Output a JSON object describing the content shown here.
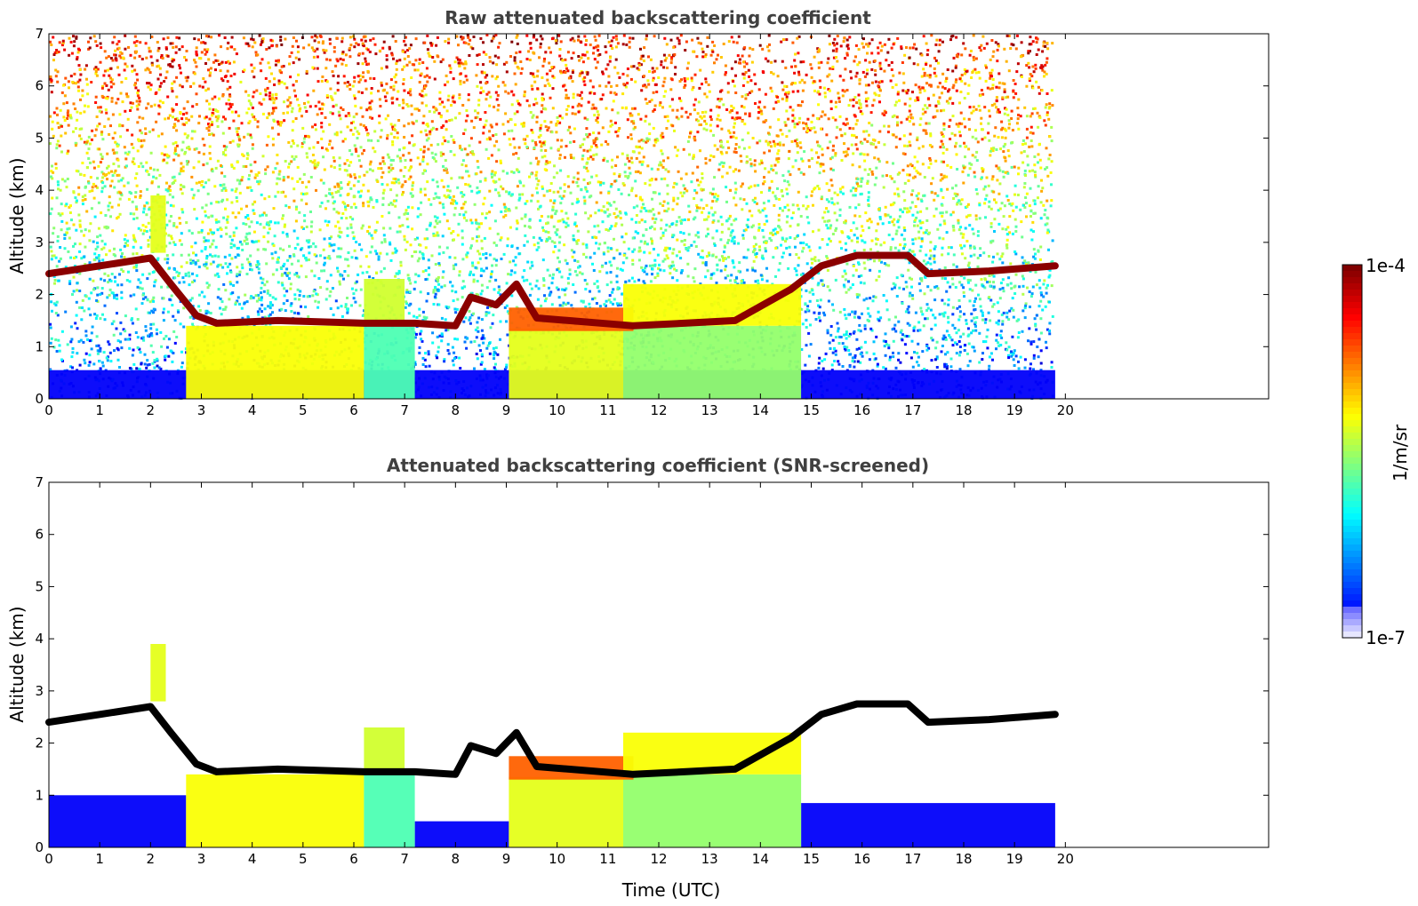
{
  "chart_data": [
    {
      "type": "heatmap",
      "title": "Raw attenuated backscattering coefficient",
      "xlabel": "",
      "ylabel": "Altitude (km)",
      "xlim": [
        0,
        24
      ],
      "ylim": [
        0,
        7
      ],
      "xticks": [
        "0",
        "1",
        "2",
        "3",
        "4",
        "5",
        "6",
        "7",
        "8",
        "9",
        "10",
        "11",
        "12",
        "13",
        "14",
        "15",
        "16",
        "17",
        "18",
        "19",
        "20"
      ],
      "yticks": [
        "0",
        "1",
        "2",
        "3",
        "4",
        "5",
        "6",
        "7"
      ],
      "data_end_time": 19.8,
      "noise_floor": true,
      "regions": [
        {
          "kind": "surface_layer",
          "x0": 0,
          "x1": 19.8,
          "y0": 0,
          "y1": 0.55,
          "level": 0.12
        },
        {
          "kind": "boundary_layer",
          "x0": 2.7,
          "x1": 6.2,
          "y0": 0,
          "y1": 1.4,
          "level": 0.62
        },
        {
          "kind": "boundary_layer",
          "x0": 6.2,
          "x1": 7.2,
          "y0": 0,
          "y1": 1.4,
          "level": 0.45
        },
        {
          "kind": "boundary_layer",
          "x0": 9.05,
          "x1": 11.3,
          "y0": 0,
          "y1": 1.35,
          "level": 0.6
        },
        {
          "kind": "boundary_layer",
          "x0": 11.3,
          "x1": 14.8,
          "y0": 0,
          "y1": 1.4,
          "level": 0.52
        },
        {
          "kind": "aerosol_layer",
          "x0": 9.05,
          "x1": 11.5,
          "y0": 1.3,
          "y1": 1.75,
          "level": 0.78
        },
        {
          "kind": "aerosol_layer",
          "x0": 6.2,
          "x1": 7.0,
          "y0": 1.4,
          "y1": 2.3,
          "level": 0.58
        },
        {
          "kind": "aerosol_layer",
          "x0": 2.0,
          "x1": 2.3,
          "y0": 2.8,
          "y1": 3.9,
          "level": 0.6
        },
        {
          "kind": "aerosol_layer",
          "x0": 11.3,
          "x1": 14.8,
          "y0": 1.4,
          "y1": 2.2,
          "level": 0.62
        }
      ],
      "cloud_base_track": [
        {
          "x": 0,
          "y": 2.4
        },
        {
          "x": 1,
          "y": 2.55
        },
        {
          "x": 2,
          "y": 2.7
        },
        {
          "x": 2.4,
          "y": 2.2
        },
        {
          "x": 2.9,
          "y": 1.6
        },
        {
          "x": 3.3,
          "y": 1.45
        },
        {
          "x": 4.5,
          "y": 1.5
        },
        {
          "x": 6.2,
          "y": 1.45
        },
        {
          "x": 7.2,
          "y": 1.45
        },
        {
          "x": 8.0,
          "y": 1.4
        },
        {
          "x": 8.3,
          "y": 1.95
        },
        {
          "x": 8.8,
          "y": 1.8
        },
        {
          "x": 9.2,
          "y": 2.2
        },
        {
          "x": 9.6,
          "y": 1.55
        },
        {
          "x": 11.5,
          "y": 1.4
        },
        {
          "x": 12.5,
          "y": 1.45
        },
        {
          "x": 13.5,
          "y": 1.5
        },
        {
          "x": 14.6,
          "y": 2.1
        },
        {
          "x": 15.2,
          "y": 2.55
        },
        {
          "x": 15.9,
          "y": 2.75
        },
        {
          "x": 16.9,
          "y": 2.75
        },
        {
          "x": 17.3,
          "y": 2.4
        },
        {
          "x": 18.5,
          "y": 2.45
        },
        {
          "x": 19.8,
          "y": 2.55
        }
      ]
    },
    {
      "type": "heatmap",
      "title": "Attenuated backscattering coefficient (SNR-screened)",
      "xlabel": "Time (UTC)",
      "ylabel": "Altitude (km)",
      "xlim": [
        0,
        24
      ],
      "ylim": [
        0,
        7
      ],
      "xticks": [
        "0",
        "1",
        "2",
        "3",
        "4",
        "5",
        "6",
        "7",
        "8",
        "9",
        "10",
        "11",
        "12",
        "13",
        "14",
        "15",
        "16",
        "17",
        "18",
        "19",
        "20"
      ],
      "yticks": [
        "0",
        "1",
        "2",
        "3",
        "4",
        "5",
        "6",
        "7"
      ],
      "data_end_time": 19.8,
      "noise_floor": false,
      "regions": [
        {
          "kind": "surface_layer",
          "x0": 0,
          "x1": 2.7,
          "y0": 0,
          "y1": 1.0,
          "level": 0.12
        },
        {
          "kind": "surface_layer",
          "x0": 7.2,
          "x1": 9.05,
          "y0": 0,
          "y1": 0.5,
          "level": 0.12
        },
        {
          "kind": "surface_layer",
          "x0": 14.8,
          "x1": 19.8,
          "y0": 0,
          "y1": 0.85,
          "level": 0.12
        },
        {
          "kind": "boundary_layer",
          "x0": 2.7,
          "x1": 6.2,
          "y0": 0,
          "y1": 1.4,
          "level": 0.62
        },
        {
          "kind": "boundary_layer",
          "x0": 6.2,
          "x1": 7.2,
          "y0": 0,
          "y1": 1.4,
          "level": 0.45
        },
        {
          "kind": "boundary_layer",
          "x0": 9.05,
          "x1": 11.3,
          "y0": 0,
          "y1": 1.35,
          "level": 0.6
        },
        {
          "kind": "boundary_layer",
          "x0": 11.3,
          "x1": 14.8,
          "y0": 0,
          "y1": 1.4,
          "level": 0.52
        },
        {
          "kind": "aerosol_layer",
          "x0": 9.05,
          "x1": 11.5,
          "y0": 1.3,
          "y1": 1.75,
          "level": 0.78
        },
        {
          "kind": "aerosol_layer",
          "x0": 6.2,
          "x1": 7.0,
          "y0": 1.4,
          "y1": 2.3,
          "level": 0.58
        },
        {
          "kind": "aerosol_layer",
          "x0": 2.0,
          "x1": 2.3,
          "y0": 2.8,
          "y1": 3.9,
          "level": 0.6
        },
        {
          "kind": "aerosol_layer",
          "x0": 11.3,
          "x1": 14.8,
          "y0": 1.4,
          "y1": 2.2,
          "level": 0.62
        }
      ],
      "cloud_base_track": [
        {
          "x": 0,
          "y": 2.4
        },
        {
          "x": 1,
          "y": 2.55
        },
        {
          "x": 2,
          "y": 2.7
        },
        {
          "x": 2.4,
          "y": 2.2
        },
        {
          "x": 2.9,
          "y": 1.6
        },
        {
          "x": 3.3,
          "y": 1.45
        },
        {
          "x": 4.5,
          "y": 1.5
        },
        {
          "x": 6.2,
          "y": 1.45
        },
        {
          "x": 7.2,
          "y": 1.45
        },
        {
          "x": 8.0,
          "y": 1.4
        },
        {
          "x": 8.3,
          "y": 1.95
        },
        {
          "x": 8.8,
          "y": 1.8
        },
        {
          "x": 9.2,
          "y": 2.2
        },
        {
          "x": 9.6,
          "y": 1.55
        },
        {
          "x": 11.5,
          "y": 1.4
        },
        {
          "x": 12.5,
          "y": 1.45
        },
        {
          "x": 13.5,
          "y": 1.5
        },
        {
          "x": 14.6,
          "y": 2.1
        },
        {
          "x": 15.2,
          "y": 2.55
        },
        {
          "x": 15.9,
          "y": 2.75
        },
        {
          "x": 16.9,
          "y": 2.75
        },
        {
          "x": 17.3,
          "y": 2.4
        },
        {
          "x": 18.5,
          "y": 2.45
        },
        {
          "x": 19.8,
          "y": 2.55
        }
      ]
    }
  ],
  "colorbar": {
    "max_label": "1e-4",
    "min_label": "1e-7",
    "unit_label": "1/m/sr",
    "scale": "log",
    "colormap": "jet"
  }
}
